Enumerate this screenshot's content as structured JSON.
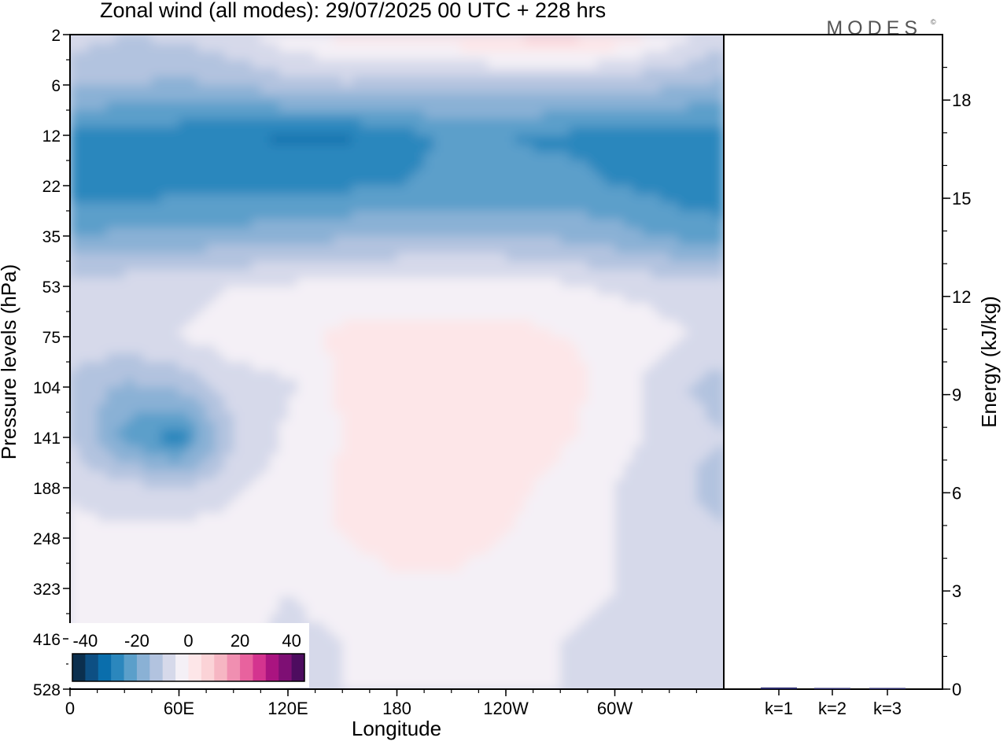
{
  "chart_data": {
    "type": "heatmap",
    "title": "Zonal wind (all modes):  29/07/2025  00 UTC  + 228 hrs",
    "brand": "MODES",
    "brand_mark": "©",
    "xlabel": "Longitude",
    "ylabel": "Pressure levels (hPa)",
    "x_ticks": [
      {
        "lon": 0,
        "label": "0"
      },
      {
        "lon": 60,
        "label": "60E"
      },
      {
        "lon": 120,
        "label": "120E"
      },
      {
        "lon": 180,
        "label": "180"
      },
      {
        "lon": 240,
        "label": "120W"
      },
      {
        "lon": 300,
        "label": "60W"
      }
    ],
    "xlim": [
      0,
      360
    ],
    "pressure_levels": [
      2,
      6,
      12,
      22,
      35,
      53,
      75,
      104,
      141,
      188,
      248,
      323,
      416,
      528
    ],
    "colorbar": {
      "tick_labels": [
        "-40",
        "-20",
        "0",
        "20",
        "40"
      ],
      "tick_values": [
        -40,
        -20,
        0,
        20,
        40
      ],
      "range": [
        -45,
        45
      ],
      "colors": [
        "#0b2f4e",
        "#0d4f83",
        "#0a6eac",
        "#2b87bd",
        "#5b9fca",
        "#8ab1d5",
        "#b2c3df",
        "#d6d9ea",
        "#f4f0f6",
        "#fde6e8",
        "#fbd3d7",
        "#f6b6c3",
        "#f08fb1",
        "#e8629e",
        "#d4348f",
        "#aa1480",
        "#7e0f74",
        "#4d0c5f"
      ]
    },
    "field": {
      "units": "m/s",
      "rows": [
        {
          "p": 2,
          "u": [
            -8,
            -10,
            -9,
            -6,
            -2,
            2,
            3,
            4,
            6,
            8,
            4,
            -2,
            -8
          ]
        },
        {
          "p": 6,
          "u": [
            -14,
            -15,
            -16,
            -15,
            -12,
            -11,
            -12,
            -13,
            -12,
            -12,
            -13,
            -14,
            -16
          ]
        },
        {
          "p": 12,
          "u": [
            -27,
            -28,
            -28,
            -29,
            -31,
            -31,
            -27,
            -24,
            -25,
            -26,
            -27,
            -27,
            -28
          ]
        },
        {
          "p": 22,
          "u": [
            -28,
            -28,
            -27,
            -27,
            -26,
            -26,
            -25,
            -24,
            -24,
            -23,
            -25,
            -27,
            -30
          ]
        },
        {
          "p": 35,
          "u": [
            -20,
            -19,
            -18,
            -18,
            -17,
            -16,
            -15,
            -15,
            -15,
            -16,
            -18,
            -21,
            -22
          ]
        },
        {
          "p": 53,
          "u": [
            -8,
            -7,
            -7,
            -5,
            -4,
            -3,
            -3,
            -2,
            -3,
            -4,
            -6,
            -7,
            -8
          ]
        },
        {
          "p": 75,
          "u": [
            -6,
            -7,
            -5,
            -2,
            -1,
            1,
            1,
            1,
            2,
            0,
            -1,
            -4,
            -7
          ]
        },
        {
          "p": 104,
          "u": [
            -12,
            -16,
            -14,
            -8,
            -6,
            1,
            3,
            5,
            5,
            2,
            -2,
            -9,
            -12
          ]
        },
        {
          "p": 141,
          "u": [
            -10,
            -22,
            -28,
            -10,
            -4,
            0,
            3,
            4,
            4,
            1,
            -3,
            -7,
            -10
          ]
        },
        {
          "p": 188,
          "u": [
            -6,
            -8,
            -10,
            -6,
            -3,
            1,
            3,
            3,
            2,
            -2,
            -5,
            -8,
            -13
          ]
        },
        {
          "p": 248,
          "u": [
            -3,
            -4,
            -3,
            -2,
            -2,
            0,
            2,
            2,
            0,
            -3,
            -5,
            -6,
            -9
          ]
        },
        {
          "p": 323,
          "u": [
            -2,
            -2,
            -3,
            -3,
            -5,
            -3,
            -1,
            -1,
            -3,
            -4,
            -5,
            -6,
            -8
          ]
        },
        {
          "p": 416,
          "u": [
            -1,
            -2,
            -3,
            -4,
            -6,
            -5,
            -3,
            -2,
            -4,
            -5,
            -6,
            -7,
            -7
          ]
        },
        {
          "p": 528,
          "u": [
            -1,
            -1,
            -2,
            -3,
            -5,
            -5,
            -3,
            -3,
            -4,
            -5,
            -5,
            -6,
            -6
          ]
        }
      ],
      "lons": [
        0,
        30,
        60,
        90,
        120,
        150,
        180,
        210,
        240,
        270,
        300,
        330,
        360
      ]
    },
    "energy_panel": {
      "ylabel": "Energy (kJ/kg)",
      "ylim": [
        0,
        20
      ],
      "y_ticks": [
        0,
        3,
        6,
        9,
        12,
        15,
        18
      ],
      "categories": [
        "k=1",
        "k=2",
        "k=3"
      ],
      "values": [
        0.05,
        0.02,
        0.01
      ],
      "bar_color": "#2a2a6a"
    }
  }
}
